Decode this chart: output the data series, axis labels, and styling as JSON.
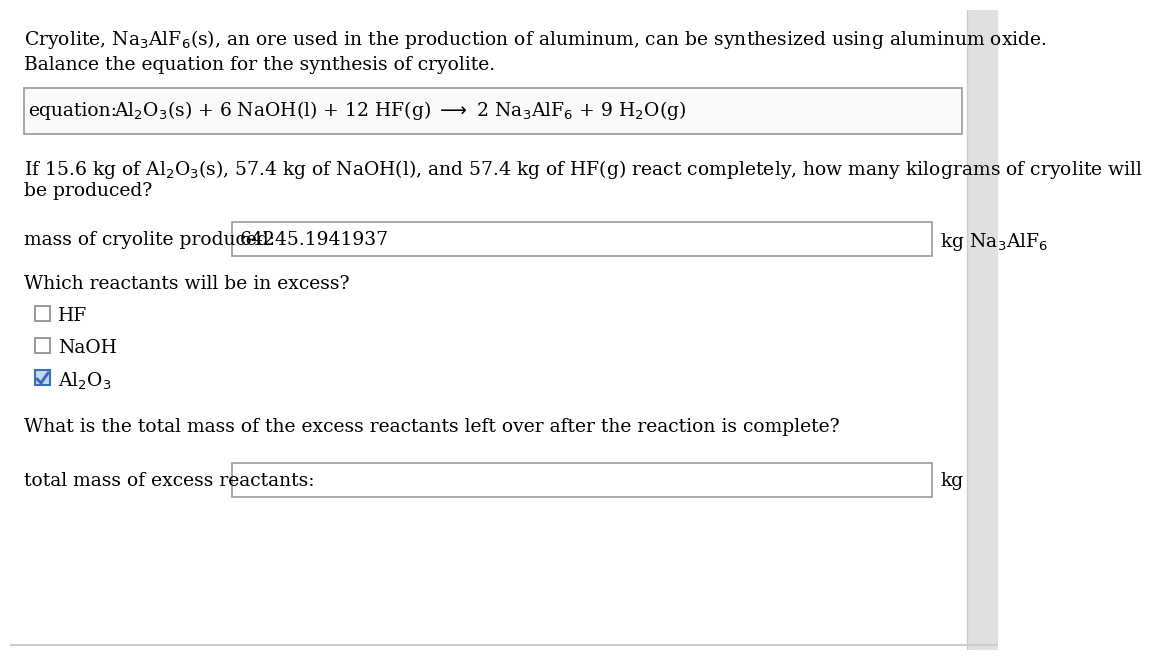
{
  "bg_color": "#ffffff",
  "text_color": "#000000",
  "line1": "Cryolite, Na$_3$AlF$_6$(s), an ore used in the production of aluminum, can be synthesized using aluminum oxide.",
  "line2": "Balance the equation for the synthesis of cryolite.",
  "eq_label": "equation:",
  "eq_content": "Al$_2$O$_3$(s) + 6 NaOH(l) + 12 HF(g) $\\longrightarrow$ 2 Na$_3$AlF$_6$ + 9 H$_2$O(g)",
  "q1_line1": "If 15.6 kg of Al$_2$O$_3$(s), 57.4 kg of NaOH(l), and 57.4 kg of HF(g) react completely, how many kilograms of cryolite will",
  "q1_line2": "be produced?",
  "mass_label": "mass of cryolite produced:",
  "mass_value": "64245.1941937",
  "mass_unit": "kg Na$_3$AlF$_6$",
  "excess_q": "Which reactants will be in excess?",
  "cb_hf": "HF",
  "cb_naoh": "NaOH",
  "cb_al2o3": "Al$_2$O$_3$",
  "total_q": "What is the total mass of the excess reactants left over after the reaction is complete?",
  "total_label": "total mass of excess reactants:",
  "total_unit": "kg",
  "check_color": "#3d6eb5",
  "check_bg": "#c5d8f0",
  "right_panel_color": "#e8e8e8",
  "box_edge_color": "#aaaaaa",
  "fs": 13.5
}
